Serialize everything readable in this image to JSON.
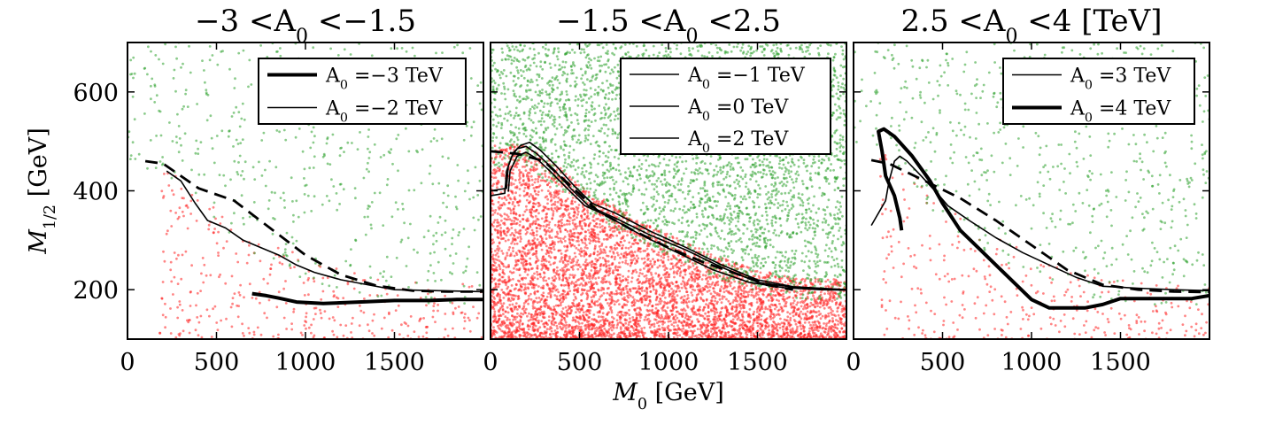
{
  "chart_data": [
    {
      "type": "scatter",
      "title": "−3 <A₀ <−1.5",
      "xlabel": "",
      "ylabel": "M1/2 [GeV]",
      "xlim": [
        0,
        2000
      ],
      "ylim": [
        100,
        700
      ],
      "xticks": [
        0,
        500,
        1000,
        1500
      ],
      "yticks": [
        200,
        400,
        600
      ],
      "xtick_labels": [
        "0",
        "500",
        "1000",
        "1500"
      ],
      "ytick_labels": [
        "200",
        "400",
        "600"
      ],
      "legend": {
        "position": "top-right",
        "entries": [
          {
            "label": "A₀ =−3 TeV",
            "linewidth": 4
          },
          {
            "label": "A₀ =−2 TeV",
            "linewidth": 1.6
          }
        ]
      },
      "scatter": {
        "green": {
          "color": "#2ca02c",
          "n": 550,
          "seed": 11,
          "region": {
            "x": [
              0,
              2000
            ],
            "y": [
              160,
              700
            ]
          },
          "above": 1
        },
        "red": {
          "color": "#ff2020",
          "n": 360,
          "seed": 23,
          "region": {
            "x": [
              180,
              2000
            ],
            "y": [
              100,
              460
            ]
          },
          "above": 0
        }
      },
      "boundary": [
        [
          0,
          490
        ],
        [
          250,
          445
        ],
        [
          500,
          340
        ],
        [
          750,
          290
        ],
        [
          1000,
          245
        ],
        [
          1250,
          215
        ],
        [
          1500,
          200
        ],
        [
          1750,
          195
        ],
        [
          2000,
          195
        ]
      ],
      "curves": [
        {
          "name": "A0 = -2 TeV",
          "lw": 1.6,
          "dashed": false,
          "points": [
            [
              220,
              440
            ],
            [
              300,
              420
            ],
            [
              380,
              375
            ],
            [
              450,
              340
            ],
            [
              550,
              325
            ],
            [
              650,
              300
            ],
            [
              750,
              285
            ],
            [
              850,
              270
            ],
            [
              950,
              250
            ],
            [
              1050,
              235
            ],
            [
              1200,
              220
            ],
            [
              1350,
              210
            ],
            [
              1500,
              200
            ],
            [
              1750,
              198
            ],
            [
              2000,
              196
            ]
          ]
        },
        {
          "name": "A0 = -3 TeV",
          "lw": 4,
          "dashed": false,
          "points": [
            [
              700,
              192
            ],
            [
              780,
              188
            ],
            [
              850,
              183
            ],
            [
              950,
              175
            ],
            [
              1100,
              172
            ],
            [
              1300,
              175
            ],
            [
              1500,
              178
            ],
            [
              1700,
              178
            ],
            [
              1850,
              180
            ],
            [
              2000,
              180
            ]
          ]
        },
        {
          "name": "reference",
          "lw": 2.8,
          "dashed": true,
          "points": [
            [
              100,
              460
            ],
            [
              200,
              455
            ],
            [
              400,
              405
            ],
            [
              600,
              380
            ],
            [
              800,
              325
            ],
            [
              1000,
              270
            ],
            [
              1200,
              230
            ],
            [
              1400,
              208
            ],
            [
              1600,
              198
            ],
            [
              1800,
              196
            ],
            [
              2000,
              196
            ]
          ]
        }
      ]
    },
    {
      "type": "scatter",
      "title": "−1.5 <A₀ <2.5",
      "xlabel": "M0 [GeV]",
      "ylabel": "",
      "xlim": [
        0,
        2000
      ],
      "ylim": [
        100,
        700
      ],
      "xticks": [
        0,
        500,
        1000,
        1500
      ],
      "yticks": [
        200,
        400,
        600
      ],
      "xtick_labels": [
        "0",
        "500",
        "1000",
        "1500"
      ],
      "ytick_labels": [],
      "legend": {
        "position": "top-right",
        "entries": [
          {
            "label": "A₀ =−1 TeV",
            "linewidth": 1.6
          },
          {
            "label": "A₀ =0 TeV",
            "linewidth": 1.6
          },
          {
            "label": "A₀ =2 TeV",
            "linewidth": 1.6
          }
        ]
      },
      "scatter": {
        "green": {
          "color": "#2ca02c",
          "n": 3400,
          "seed": 37,
          "region": {
            "x": [
              0,
              2000
            ],
            "y": [
              180,
              700
            ]
          },
          "above": 1
        },
        "red": {
          "color": "#ff2020",
          "n": 5200,
          "seed": 41,
          "region": {
            "x": [
              0,
              2000
            ],
            "y": [
              100,
              500
            ]
          },
          "above": 0
        }
      },
      "boundary": [
        [
          0,
          470
        ],
        [
          150,
          480
        ],
        [
          350,
          440
        ],
        [
          500,
          390
        ],
        [
          700,
          350
        ],
        [
          900,
          310
        ],
        [
          1100,
          275
        ],
        [
          1300,
          245
        ],
        [
          1500,
          220
        ],
        [
          1700,
          205
        ],
        [
          2000,
          200
        ]
      ],
      "curves": [
        {
          "name": "A0 = -1 TeV",
          "lw": 1.6,
          "dashed": false,
          "points": [
            [
              0,
              390
            ],
            [
              80,
              395
            ],
            [
              90,
              440
            ],
            [
              120,
              470
            ],
            [
              150,
              485
            ],
            [
              200,
              490
            ],
            [
              260,
              475
            ],
            [
              350,
              445
            ],
            [
              450,
              405
            ],
            [
              550,
              370
            ],
            [
              700,
              345
            ],
            [
              900,
              310
            ],
            [
              1100,
              280
            ],
            [
              1300,
              245
            ],
            [
              1500,
              215
            ],
            [
              1700,
              205
            ],
            [
              2000,
              200
            ]
          ]
        },
        {
          "name": "A0 = 0 TeV",
          "lw": 1.6,
          "dashed": false,
          "points": [
            [
              0,
              400
            ],
            [
              90,
              405
            ],
            [
              100,
              450
            ],
            [
              130,
              478
            ],
            [
              170,
              492
            ],
            [
              220,
              498
            ],
            [
              280,
              482
            ],
            [
              370,
              450
            ],
            [
              470,
              410
            ],
            [
              570,
              375
            ],
            [
              700,
              355
            ],
            [
              900,
              318
            ],
            [
              1100,
              285
            ],
            [
              1300,
              250
            ],
            [
              1500,
              220
            ],
            [
              1700,
              206
            ],
            [
              2000,
              200
            ]
          ]
        },
        {
          "name": "A0 = 2 TeV",
          "lw": 1.6,
          "dashed": false,
          "points": [
            [
              100,
              398
            ],
            [
              110,
              440
            ],
            [
              150,
              470
            ],
            [
              200,
              478
            ],
            [
              260,
              465
            ],
            [
              340,
              438
            ],
            [
              430,
              405
            ],
            [
              530,
              370
            ],
            [
              650,
              350
            ],
            [
              850,
              310
            ],
            [
              1050,
              275
            ],
            [
              1250,
              240
            ],
            [
              1450,
              215
            ],
            [
              1650,
              204
            ],
            [
              1850,
              200
            ],
            [
              2000,
              199
            ]
          ]
        },
        {
          "name": "reference",
          "lw": 2.8,
          "dashed": true,
          "points": [
            [
              0,
              480
            ],
            [
              150,
              475
            ],
            [
              300,
              460
            ],
            [
              450,
              410
            ],
            [
              600,
              360
            ],
            [
              800,
              320
            ],
            [
              1000,
              285
            ],
            [
              1200,
              255
            ],
            [
              1400,
              230
            ],
            [
              1550,
              210
            ],
            [
              1700,
              200
            ]
          ]
        }
      ]
    },
    {
      "type": "scatter",
      "title": "2.5 <A₀ <4 [TeV]",
      "xlabel": "",
      "ylabel": "",
      "xlim": [
        0,
        2000
      ],
      "ylim": [
        100,
        700
      ],
      "xticks": [
        0,
        500,
        1000,
        1500
      ],
      "yticks": [
        200,
        400,
        600
      ],
      "xtick_labels": [
        "0",
        "500",
        "1000",
        "1500"
      ],
      "ytick_labels": [],
      "legend": {
        "position": "top-right",
        "entries": [
          {
            "label": "A₀ =3 TeV",
            "linewidth": 1.6
          },
          {
            "label": "A₀ =4 TeV",
            "linewidth": 4
          }
        ]
      },
      "scatter": {
        "green": {
          "color": "#2ca02c",
          "n": 650,
          "seed": 53,
          "region": {
            "x": [
              0,
              2000
            ],
            "y": [
              160,
              700
            ]
          },
          "above": 1
        },
        "red": {
          "color": "#ff2020",
          "n": 320,
          "seed": 67,
          "region": {
            "x": [
              150,
              2000
            ],
            "y": [
              100,
              500
            ]
          },
          "above": 0
        }
      },
      "boundary": [
        [
          0,
          500
        ],
        [
          150,
          520
        ],
        [
          300,
          450
        ],
        [
          500,
          360
        ],
        [
          750,
          300
        ],
        [
          1000,
          250
        ],
        [
          1250,
          215
        ],
        [
          1500,
          200
        ],
        [
          1750,
          190
        ],
        [
          2000,
          190
        ]
      ],
      "curves": [
        {
          "name": "A0 = 3 TeV",
          "lw": 1.6,
          "dashed": false,
          "points": [
            [
              100,
              330
            ],
            [
              180,
              380
            ],
            [
              200,
              420
            ],
            [
              230,
              460
            ],
            [
              260,
              470
            ],
            [
              300,
              460
            ],
            [
              380,
              430
            ],
            [
              470,
              395
            ],
            [
              530,
              370
            ],
            [
              650,
              340
            ],
            [
              800,
              305
            ],
            [
              950,
              275
            ],
            [
              1100,
              250
            ],
            [
              1250,
              225
            ],
            [
              1400,
              207
            ],
            [
              1600,
              203
            ],
            [
              1800,
              200
            ],
            [
              2000,
              198
            ]
          ]
        },
        {
          "name": "A0 = 4 TeV",
          "lw": 4,
          "dashed": false,
          "points": [
            [
              270,
              320
            ],
            [
              260,
              345
            ],
            [
              230,
              390
            ],
            [
              180,
              430
            ],
            [
              160,
              480
            ],
            [
              140,
              520
            ],
            [
              170,
              525
            ],
            [
              230,
              510
            ],
            [
              330,
              470
            ],
            [
              430,
              420
            ],
            [
              500,
              375
            ],
            [
              600,
              320
            ],
            [
              700,
              285
            ],
            [
              800,
              250
            ],
            [
              900,
              215
            ],
            [
              1000,
              180
            ],
            [
              1100,
              163
            ],
            [
              1300,
              163
            ],
            [
              1400,
              170
            ],
            [
              1500,
              182
            ],
            [
              1700,
              182
            ],
            [
              1900,
              182
            ],
            [
              2000,
              188
            ]
          ]
        },
        {
          "name": "reference",
          "lw": 2.8,
          "dashed": true,
          "points": [
            [
              100,
              462
            ],
            [
              200,
              455
            ],
            [
              400,
              420
            ],
            [
              600,
              385
            ],
            [
              800,
              340
            ],
            [
              1000,
              290
            ],
            [
              1200,
              240
            ],
            [
              1400,
              210
            ],
            [
              1600,
              200
            ],
            [
              1800,
              196
            ],
            [
              2000,
              195
            ]
          ]
        }
      ]
    }
  ]
}
